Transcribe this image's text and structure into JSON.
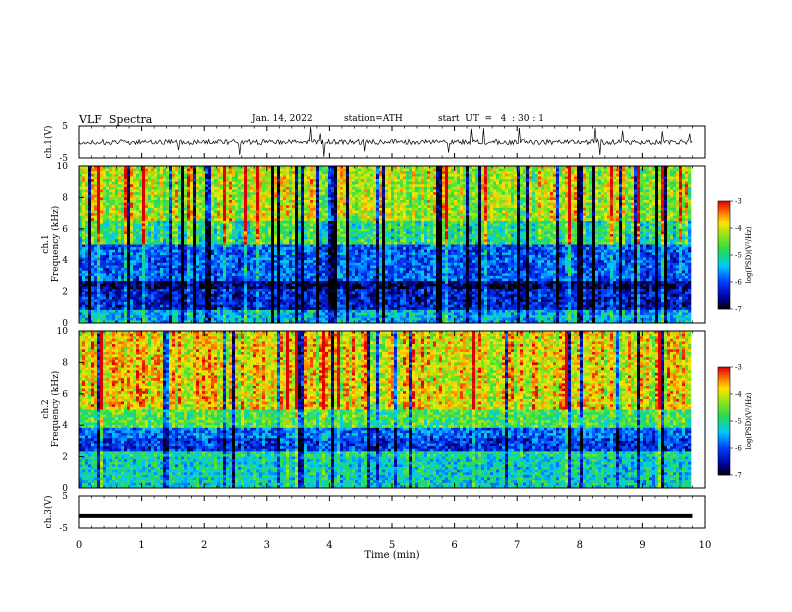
{
  "header": {
    "title": "VLF  Spectra",
    "date": "Jan. 14, 2022",
    "station": "station=ATH",
    "start": "start  UT  =   4  : 30 : 1"
  },
  "chart_data": [
    {
      "type": "line",
      "panel": "ch1-waveform",
      "ylabel": "ch.1(V)",
      "ylim": [
        -5,
        5
      ],
      "yticks": [
        "5",
        "-5"
      ],
      "xlim": [
        0,
        10
      ],
      "series": [
        {
          "description_values": "noisy signal near 0 V with spikes",
          "values": []
        }
      ],
      "color": "#000000"
    },
    {
      "type": "heatmap",
      "panel": "ch1-spectrogram",
      "ylabel_top": "ch.1",
      "ylabel": "Frequency  (kHz)",
      "ylim": [
        0,
        10
      ],
      "yticks": [
        "0",
        "2",
        "4",
        "6",
        "8",
        "10"
      ],
      "xlim": [
        0,
        9.8
      ],
      "colorbar": {
        "label": "log(PSD)(V²/Hz)",
        "range": [
          -7,
          -3
        ],
        "ticks": [
          "-3",
          "-4",
          "-5",
          "-6",
          "-7"
        ]
      }
    },
    {
      "type": "heatmap",
      "panel": "ch2-spectrogram",
      "ylabel_top": "ch.2",
      "ylabel": "Frequency  (kHz)",
      "ylim": [
        0,
        10
      ],
      "yticks": [
        "0",
        "2",
        "4",
        "6",
        "8",
        "10"
      ],
      "xlim": [
        0,
        9.8
      ],
      "colorbar": {
        "label": "log(PSD)(V²/Hz)",
        "range": [
          -7,
          -3
        ],
        "ticks": [
          "-3",
          "-4",
          "-5",
          "-6",
          "-7"
        ]
      }
    },
    {
      "type": "line",
      "panel": "ch3-waveform",
      "ylabel": "ch.3(V)",
      "ylim": [
        -5,
        5
      ],
      "yticks": [
        "5",
        "-5"
      ],
      "xlim": [
        0,
        10
      ],
      "series": [
        {
          "values": [
            -1.2,
            -1.2
          ]
        }
      ],
      "color": "#000000"
    }
  ],
  "xaxis": {
    "label": "Time  (min)",
    "ticks": [
      "0",
      "1",
      "2",
      "3",
      "4",
      "5",
      "6",
      "7",
      "8",
      "9",
      "10"
    ],
    "range": [
      0,
      10
    ]
  }
}
